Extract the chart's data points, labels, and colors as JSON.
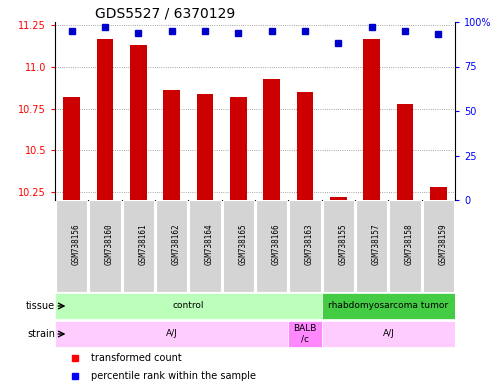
{
  "title": "GDS5527 / 6370129",
  "samples": [
    "GSM738156",
    "GSM738160",
    "GSM738161",
    "GSM738162",
    "GSM738164",
    "GSM738165",
    "GSM738166",
    "GSM738163",
    "GSM738155",
    "GSM738157",
    "GSM738158",
    "GSM738159"
  ],
  "transformed_counts": [
    10.82,
    11.17,
    11.13,
    10.86,
    10.84,
    10.82,
    10.93,
    10.85,
    10.22,
    11.17,
    10.78,
    10.28
  ],
  "percentile_ranks": [
    95,
    97,
    94,
    95,
    95,
    94,
    95,
    95,
    88,
    97,
    95,
    93
  ],
  "ylim_left": [
    10.2,
    11.27
  ],
  "ylim_right": [
    0,
    100
  ],
  "yticks_left": [
    10.25,
    10.5,
    10.75,
    11.0,
    11.25
  ],
  "yticks_right": [
    0,
    25,
    50,
    75,
    100
  ],
  "bar_color": "#cc0000",
  "dot_color": "#0000cc",
  "tissue_groups": [
    {
      "text": "control",
      "start": 0,
      "end": 7,
      "color": "#bbffbb"
    },
    {
      "text": "rhabdomyosarcoma tumor",
      "start": 8,
      "end": 11,
      "color": "#44cc44"
    }
  ],
  "strain_groups": [
    {
      "text": "A/J",
      "start": 0,
      "end": 6,
      "color": "#ffccff"
    },
    {
      "text": "BALB\n/c",
      "start": 7,
      "end": 7,
      "color": "#ff88ff"
    },
    {
      "text": "A/J",
      "start": 8,
      "end": 11,
      "color": "#ffccff"
    }
  ],
  "label_tissue": "tissue",
  "label_strain": "strain",
  "legend_bar": "transformed count",
  "legend_dot": "percentile rank within the sample",
  "sample_box_color": "#d4d4d4",
  "grid_color": "#888888",
  "bg_color": "#ffffff",
  "title_fontsize": 10,
  "tick_fontsize": 7,
  "label_fontsize": 7,
  "sample_fontsize": 5.5
}
